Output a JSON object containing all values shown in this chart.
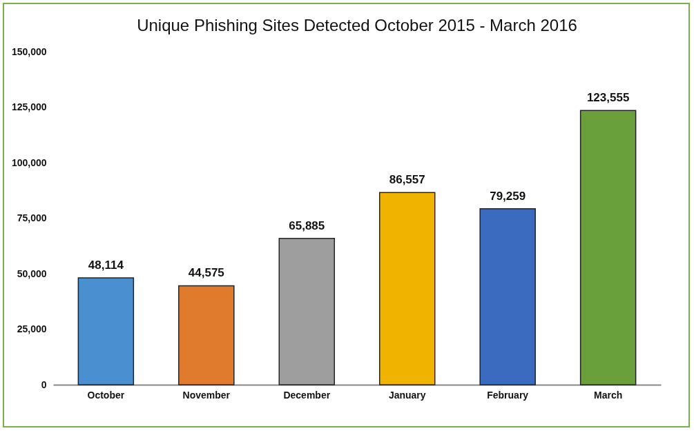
{
  "chart_data": {
    "type": "bar",
    "title": "Unique Phishing Sites Detected October 2015 - March 2016",
    "categories": [
      "October",
      "November",
      "December",
      "January",
      "February",
      "March"
    ],
    "values": [
      48114,
      44575,
      65885,
      86557,
      79259,
      123555
    ],
    "value_labels": [
      "48,114",
      "44,575",
      "65,885",
      "86,557",
      "79,259",
      "123,555"
    ],
    "colors": [
      "#4a90d0",
      "#e07a2c",
      "#9e9e9e",
      "#f0b400",
      "#3a6bbf",
      "#6aa03c"
    ],
    "ylim": [
      0,
      150000
    ],
    "yticks": [
      {
        "value": 0,
        "label": "0"
      },
      {
        "value": 25000,
        "label": "25,000"
      },
      {
        "value": 50000,
        "label": "50,000"
      },
      {
        "value": 75000,
        "label": "75,000"
      },
      {
        "value": 100000,
        "label": "100,000"
      },
      {
        "value": 125000,
        "label": "125,000"
      },
      {
        "value": 150000,
        "label": "150,000"
      }
    ],
    "grid": false,
    "legend": false
  }
}
